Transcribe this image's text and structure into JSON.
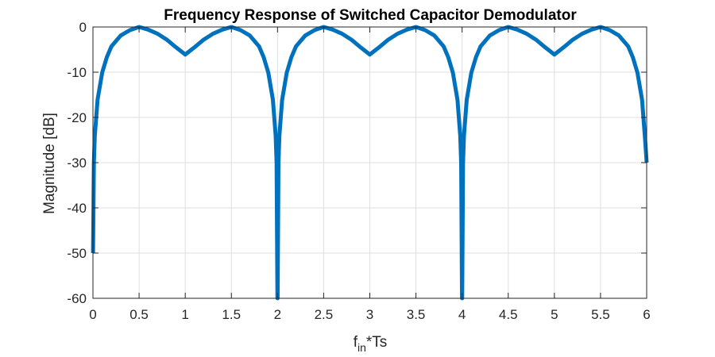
{
  "chart_data": {
    "type": "line",
    "title": "Frequency Response of Switched Capacitor Demodulator",
    "xlabel": {
      "main": "f",
      "sub": "in",
      "suffix": "*Ts"
    },
    "ylabel": "Magnitude [dB]",
    "xlim": [
      0,
      6
    ],
    "ylim": [
      -60,
      0
    ],
    "xticks": [
      0,
      0.5,
      1,
      1.5,
      2,
      2.5,
      3,
      3.5,
      4,
      4.5,
      5,
      5.5,
      6
    ],
    "xtick_labels": [
      "0",
      "0.5",
      "1",
      "1.5",
      "2",
      "2.5",
      "3",
      "3.5",
      "4",
      "4.5",
      "5",
      "5.5",
      "6"
    ],
    "yticks": [
      0,
      -10,
      -20,
      -30,
      -40,
      -50,
      -60
    ],
    "ytick_labels": [
      "0",
      "-10",
      "-20",
      "-30",
      "-40",
      "-50",
      "-60"
    ],
    "grid": true,
    "series": [
      {
        "color": "#0072BD",
        "x": [
          0.001,
          0.01,
          0.02,
          0.05,
          0.1,
          0.15,
          0.2,
          0.3,
          0.4,
          0.5,
          0.6,
          0.7,
          0.8,
          0.9,
          1.0,
          1.1,
          1.2,
          1.3,
          1.4,
          1.5,
          1.6,
          1.7,
          1.8,
          1.85,
          1.9,
          1.95,
          1.98,
          1.99,
          1.999,
          2.001,
          2.01,
          2.02,
          2.05,
          2.1,
          2.15,
          2.2,
          2.3,
          2.4,
          2.5,
          2.6,
          2.7,
          2.8,
          2.9,
          3.0,
          3.1,
          3.2,
          3.3,
          3.4,
          3.5,
          3.6,
          3.7,
          3.8,
          3.85,
          3.9,
          3.95,
          3.98,
          3.99,
          3.999,
          4.001,
          4.01,
          4.02,
          4.05,
          4.1,
          4.15,
          4.2,
          4.3,
          4.4,
          4.5,
          4.6,
          4.7,
          4.8,
          4.9,
          5.0,
          5.1,
          5.2,
          5.3,
          5.4,
          5.5,
          5.6,
          5.7,
          5.8,
          5.85,
          5.9,
          5.95,
          5.98,
          6.0
        ],
        "y": [
          -50,
          -30.1,
          -24.1,
          -16.1,
          -10.1,
          -6.7,
          -4.3,
          -1.9,
          -0.7,
          0,
          -0.6,
          -1.5,
          -2.8,
          -4.5,
          -6.1,
          -4.5,
          -2.8,
          -1.5,
          -0.6,
          0,
          -0.7,
          -1.9,
          -4.3,
          -6.7,
          -10.1,
          -16.1,
          -24.1,
          -30.1,
          -60,
          -60,
          -30.1,
          -24.1,
          -16.1,
          -10.1,
          -6.7,
          -4.3,
          -1.9,
          -0.7,
          0,
          -0.6,
          -1.5,
          -2.8,
          -4.5,
          -6.1,
          -4.5,
          -2.8,
          -1.5,
          -0.6,
          0,
          -0.7,
          -1.9,
          -4.3,
          -6.7,
          -10.1,
          -16.1,
          -24.1,
          -30.1,
          -60,
          -60,
          -30.1,
          -24.1,
          -16.1,
          -10.1,
          -6.7,
          -4.3,
          -1.9,
          -0.7,
          0,
          -0.6,
          -1.5,
          -2.8,
          -4.5,
          -6.1,
          -4.5,
          -2.8,
          -1.5,
          -0.6,
          0,
          -0.7,
          -1.9,
          -4.3,
          -6.7,
          -10.1,
          -16.1,
          -24.1,
          -30
        ]
      }
    ]
  }
}
